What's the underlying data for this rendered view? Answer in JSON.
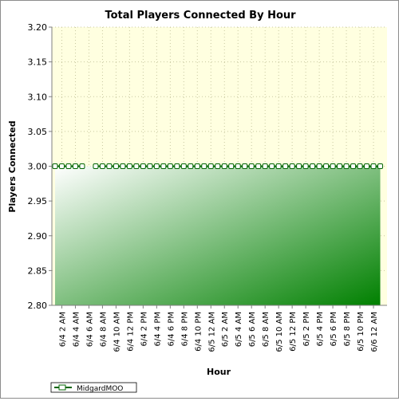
{
  "chart_data": {
    "type": "area",
    "title": "Total Players Connected By Hour",
    "xlabel": "Hour",
    "ylabel": "Players Connected",
    "ylim": [
      2.8,
      3.2
    ],
    "y_ticks": [
      "2.80",
      "2.85",
      "2.90",
      "2.95",
      "3.00",
      "3.05",
      "3.10",
      "3.15",
      "3.20"
    ],
    "x_tick_labels": [
      "6/4 2 AM",
      "6/4 4 AM",
      "6/4 6 AM",
      "6/4 8 AM",
      "6/4 10 AM",
      "6/4 12 PM",
      "6/4 2 PM",
      "6/4 4 PM",
      "6/4 6 PM",
      "6/4 8 PM",
      "6/4 10 PM",
      "6/5 12 AM",
      "6/5 2 AM",
      "6/5 4 AM",
      "6/5 6 AM",
      "6/5 8 AM",
      "6/5 10 AM",
      "6/5 12 PM",
      "6/5 2 PM",
      "6/5 4 PM",
      "6/5 6 PM",
      "6/5 8 PM",
      "6/5 10 PM",
      "6/6 12 AM"
    ],
    "x_hours": [
      0,
      1,
      2,
      3,
      4,
      6,
      7,
      8,
      9,
      10,
      11,
      12,
      13,
      14,
      15,
      16,
      17,
      18,
      19,
      20,
      21,
      22,
      23,
      24,
      25,
      26,
      27,
      28,
      29,
      30,
      31,
      32,
      33,
      34,
      35,
      36,
      37,
      38,
      39,
      40,
      41,
      42,
      43,
      44,
      45,
      46,
      47,
      48
    ],
    "series": [
      {
        "name": "MidgardMOO",
        "values": [
          3,
          3,
          3,
          3,
          3,
          3,
          3,
          3,
          3,
          3,
          3,
          3,
          3,
          3,
          3,
          3,
          3,
          3,
          3,
          3,
          3,
          3,
          3,
          3,
          3,
          3,
          3,
          3,
          3,
          3,
          3,
          3,
          3,
          3,
          3,
          3,
          3,
          3,
          3,
          3,
          3,
          3,
          3,
          3,
          3,
          3,
          3,
          3
        ]
      }
    ],
    "grid": true,
    "legend": "bottom-left",
    "colors": {
      "plot_background": "#ffffe0",
      "area_dark": "#008000",
      "area_light": "#ffffff",
      "line": "#006400",
      "marker_fill": "#ffffff",
      "grid": "#c8c8a0"
    }
  }
}
